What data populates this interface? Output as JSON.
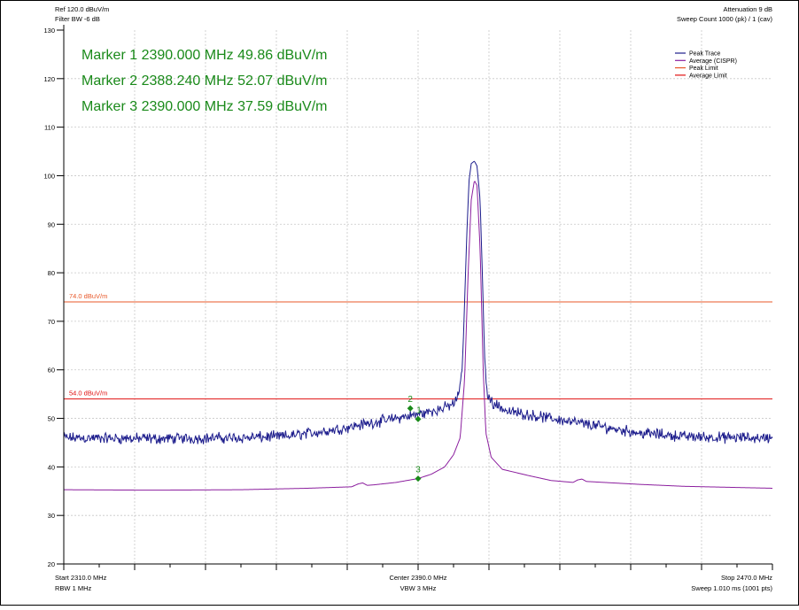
{
  "header": {
    "ref": "Ref 120.0 dBuV/m",
    "filter_bw": "Filter BW -6 dB",
    "attenuation": "Attenuation 9 dB",
    "sweep_count": "Sweep Count 1000 (pk) / 1 (cav)"
  },
  "markers_readout": [
    "Marker 1 2390.000 MHz 49.86 dBuV/m",
    "Marker 2 2388.240 MHz 52.07 dBuV/m",
    "Marker 3 2390.000 MHz 37.59 dBuV/m"
  ],
  "footer": {
    "start": "Start 2310.0 MHz",
    "rbw": "RBW 1 MHz",
    "center": "Center 2390.0 MHz",
    "vbw": "VBW 3 MHz",
    "stop": "Stop 2470.0 MHz",
    "sweep": "Sweep 1.010 ms (1001 pts)"
  },
  "colors": {
    "peak_trace": "#1c1c8c",
    "average_trace": "#8b1e9e",
    "peak_limit": "#e8582a",
    "average_limit": "#e01010",
    "marker": "#1a8a1a",
    "grid": "#c8c8c8",
    "axis": "#000000"
  },
  "chart_data": {
    "type": "line",
    "xlim": [
      2310.0,
      2470.0
    ],
    "ylim": [
      20,
      130
    ],
    "y_ticks": [
      20,
      30,
      40,
      50,
      60,
      70,
      80,
      90,
      100,
      110,
      120,
      130
    ],
    "grid": true,
    "legend": {
      "position": "top-right",
      "entries": [
        {
          "name": "Peak Trace",
          "color": "#1c1c8c"
        },
        {
          "name": "Average (CISPR)",
          "color": "#8b1e9e"
        },
        {
          "name": "Peak Limit",
          "color": "#e8582a"
        },
        {
          "name": "Average Limit",
          "color": "#e01010"
        }
      ]
    },
    "limits": [
      {
        "name": "Peak Limit",
        "value": 74.0,
        "label": "74.0 dBuV/m",
        "color": "#e8582a"
      },
      {
        "name": "Average Limit",
        "value": 54.0,
        "label": "54.0 dBuV/m",
        "color": "#e01010"
      }
    ],
    "series": [
      {
        "name": "Peak Trace",
        "color": "#1c1c8c",
        "noise_amplitude": 1.0,
        "points": [
          [
            2310,
            46.0
          ],
          [
            2330,
            45.8
          ],
          [
            2350,
            46.0
          ],
          [
            2360,
            46.3
          ],
          [
            2370,
            47.5
          ],
          [
            2376,
            48.5
          ],
          [
            2382,
            49.5
          ],
          [
            2388,
            50.5
          ],
          [
            2392,
            51.2
          ],
          [
            2396,
            52.2
          ],
          [
            2398,
            53.0
          ],
          [
            2399,
            54.5
          ],
          [
            2400,
            60.0
          ],
          [
            2401,
            88.0
          ],
          [
            2401.5,
            99.0
          ],
          [
            2402,
            102.5
          ],
          [
            2402.7,
            103.0
          ],
          [
            2403.3,
            102.0
          ],
          [
            2404,
            95.0
          ],
          [
            2404.5,
            80.0
          ],
          [
            2405,
            63.0
          ],
          [
            2405.6,
            55.0
          ],
          [
            2406.5,
            53.5
          ],
          [
            2410,
            51.5
          ],
          [
            2420,
            50.0
          ],
          [
            2430,
            48.5
          ],
          [
            2440,
            47.0
          ],
          [
            2450,
            46.3
          ],
          [
            2460,
            46.0
          ],
          [
            2470,
            46.0
          ]
        ]
      },
      {
        "name": "Average (CISPR)",
        "color": "#8b1e9e",
        "noise_amplitude": 0,
        "points": [
          [
            2310,
            35.3
          ],
          [
            2330,
            35.2
          ],
          [
            2350,
            35.3
          ],
          [
            2365,
            35.6
          ],
          [
            2375,
            35.9
          ],
          [
            2376.5,
            36.5
          ],
          [
            2377.5,
            36.7
          ],
          [
            2378.5,
            36.2
          ],
          [
            2380,
            36.3
          ],
          [
            2385,
            36.8
          ],
          [
            2390,
            37.6
          ],
          [
            2393,
            38.5
          ],
          [
            2396,
            40.0
          ],
          [
            2398,
            42.5
          ],
          [
            2399.5,
            46.0
          ],
          [
            2400.5,
            58.0
          ],
          [
            2401.3,
            80.0
          ],
          [
            2402,
            95.0
          ],
          [
            2402.7,
            99.0
          ],
          [
            2403.3,
            98.0
          ],
          [
            2404,
            85.0
          ],
          [
            2404.7,
            60.0
          ],
          [
            2405.3,
            47.0
          ],
          [
            2406.5,
            42.0
          ],
          [
            2409,
            39.5
          ],
          [
            2415,
            38.2
          ],
          [
            2420,
            37.2
          ],
          [
            2425,
            36.8
          ],
          [
            2426,
            37.3
          ],
          [
            2427,
            37.5
          ],
          [
            2428,
            37.0
          ],
          [
            2430,
            36.9
          ],
          [
            2440,
            36.4
          ],
          [
            2450,
            36.0
          ],
          [
            2460,
            35.8
          ],
          [
            2470,
            35.6
          ]
        ]
      }
    ],
    "markers": [
      {
        "id": "1",
        "x": 2390.0,
        "y": 49.86
      },
      {
        "id": "2",
        "x": 2388.24,
        "y": 52.07
      },
      {
        "id": "3",
        "x": 2390.0,
        "y": 37.59
      }
    ]
  }
}
